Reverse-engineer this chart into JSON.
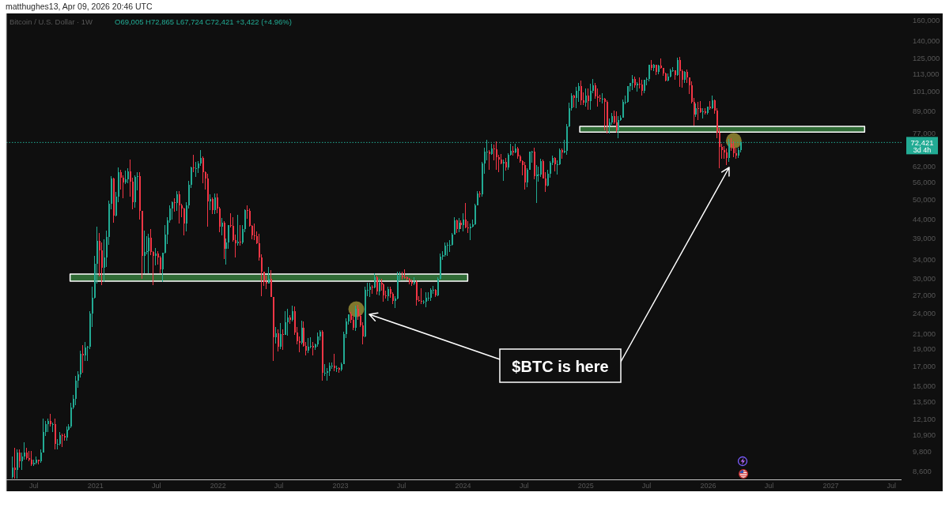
{
  "chart_data": {
    "type": "candlestick",
    "title": "Bitcoin / U.S. Dollar · 1W",
    "subtitle": "O69,005 H72,865 L67,724 C72,421 +3,422 (+4.96%)",
    "annotations": [
      "matthughes13, Apr 09, 2026 20:46 UTC",
      "3d 4h",
      "$BTC is here"
    ],
    "x": [
      "2020-04-27",
      "2020-05-04",
      "2020-05-11",
      "2020-05-18",
      "2020-05-25",
      "2020-06-01",
      "2020-06-08",
      "2020-06-15",
      "2020-06-22",
      "2020-06-29",
      "2020-07-06",
      "2020-07-13",
      "2020-07-20",
      "2020-07-27",
      "2020-08-03",
      "2020-08-10",
      "2020-08-17",
      "2020-08-24",
      "2020-08-31",
      "2020-09-07",
      "2020-09-14",
      "2020-09-21",
      "2020-09-28",
      "2020-10-05",
      "2020-10-12",
      "2020-10-19",
      "2020-10-26",
      "2020-11-02",
      "2020-11-09",
      "2020-11-16",
      "2020-11-23",
      "2020-11-30",
      "2020-12-07",
      "2020-12-14",
      "2020-12-21",
      "2020-12-28",
      "2021-01-04",
      "2021-01-11",
      "2021-01-18",
      "2021-01-25",
      "2021-02-01",
      "2021-02-08",
      "2021-02-15",
      "2021-02-22",
      "2021-03-01",
      "2021-03-08",
      "2021-03-15",
      "2021-03-22",
      "2021-03-29",
      "2021-04-05",
      "2021-04-12",
      "2021-04-19",
      "2021-04-26",
      "2021-05-03",
      "2021-05-10",
      "2021-05-17",
      "2021-05-24",
      "2021-05-31",
      "2021-06-07",
      "2021-06-14",
      "2021-06-21",
      "2021-06-28",
      "2021-07-05",
      "2021-07-12",
      "2021-07-19",
      "2021-07-26",
      "2021-08-02",
      "2021-08-09",
      "2021-08-16",
      "2021-08-23",
      "2021-08-30",
      "2021-09-06",
      "2021-09-13",
      "2021-09-20",
      "2021-09-27",
      "2021-10-04",
      "2021-10-11",
      "2021-10-18",
      "2021-10-25",
      "2021-11-01",
      "2021-11-08",
      "2021-11-15",
      "2021-11-22",
      "2021-11-29",
      "2021-12-06",
      "2021-12-13",
      "2021-12-20",
      "2021-12-27",
      "2022-01-03",
      "2022-01-10",
      "2022-01-17",
      "2022-01-24",
      "2022-01-31",
      "2022-02-07",
      "2022-02-14",
      "2022-02-21",
      "2022-02-28",
      "2022-03-07",
      "2022-03-14",
      "2022-03-21",
      "2022-03-28",
      "2022-04-04",
      "2022-04-11",
      "2022-04-18",
      "2022-04-25",
      "2022-05-02",
      "2022-05-09",
      "2022-05-16",
      "2022-05-23",
      "2022-05-30",
      "2022-06-06",
      "2022-06-13",
      "2022-06-20",
      "2022-06-27",
      "2022-07-04",
      "2022-07-11",
      "2022-07-18",
      "2022-07-25",
      "2022-08-01",
      "2022-08-08",
      "2022-08-15",
      "2022-08-22",
      "2022-08-29",
      "2022-09-05",
      "2022-09-12",
      "2022-09-19",
      "2022-09-26",
      "2022-10-03",
      "2022-10-10",
      "2022-10-17",
      "2022-10-24",
      "2022-10-31",
      "2022-11-07",
      "2022-11-14",
      "2022-11-21",
      "2022-11-28",
      "2022-12-05",
      "2022-12-12",
      "2022-12-19",
      "2022-12-26",
      "2023-01-02",
      "2023-01-09",
      "2023-01-16",
      "2023-01-23",
      "2023-01-30",
      "2023-02-06",
      "2023-02-13",
      "2023-02-20",
      "2023-02-27",
      "2023-03-06",
      "2023-03-13",
      "2023-03-20",
      "2023-03-27",
      "2023-04-03",
      "2023-04-10",
      "2023-04-17",
      "2023-04-24",
      "2023-05-01",
      "2023-05-08",
      "2023-05-15",
      "2023-05-22",
      "2023-05-29",
      "2023-06-05",
      "2023-06-12",
      "2023-06-19",
      "2023-06-26",
      "2023-07-03",
      "2023-07-10",
      "2023-07-17",
      "2023-07-24",
      "2023-07-31",
      "2023-08-07",
      "2023-08-14",
      "2023-08-21",
      "2023-08-28",
      "2023-09-04",
      "2023-09-11",
      "2023-09-18",
      "2023-09-25",
      "2023-10-02",
      "2023-10-09",
      "2023-10-16",
      "2023-10-23",
      "2023-10-30",
      "2023-11-06",
      "2023-11-13",
      "2023-11-20",
      "2023-11-27",
      "2023-12-04",
      "2023-12-11",
      "2023-12-18",
      "2023-12-25",
      "2024-01-01",
      "2024-01-08",
      "2024-01-15",
      "2024-01-22",
      "2024-01-29",
      "2024-02-05",
      "2024-02-12",
      "2024-02-19",
      "2024-02-26",
      "2024-03-04",
      "2024-03-11",
      "2024-03-18",
      "2024-03-25",
      "2024-04-01",
      "2024-04-08",
      "2024-04-15",
      "2024-04-22",
      "2024-04-29",
      "2024-05-06",
      "2024-05-13",
      "2024-05-20",
      "2024-05-27",
      "2024-06-03",
      "2024-06-10",
      "2024-06-17",
      "2024-06-24",
      "2024-07-01",
      "2024-07-08",
      "2024-07-15",
      "2024-07-22",
      "2024-07-29",
      "2024-08-05",
      "2024-08-12",
      "2024-08-19",
      "2024-08-26",
      "2024-09-02",
      "2024-09-09",
      "2024-09-16",
      "2024-09-23",
      "2024-09-30",
      "2024-10-07",
      "2024-10-14",
      "2024-10-21",
      "2024-10-28",
      "2024-11-04",
      "2024-11-11",
      "2024-11-18",
      "2024-11-25",
      "2024-12-02",
      "2024-12-09",
      "2024-12-16",
      "2024-12-23",
      "2024-12-30",
      "2025-01-06",
      "2025-01-13",
      "2025-01-20",
      "2025-01-27",
      "2025-02-03",
      "2025-02-10",
      "2025-02-17",
      "2025-02-24",
      "2025-03-03",
      "2025-03-10",
      "2025-03-17",
      "2025-03-24",
      "2025-03-31",
      "2025-04-07",
      "2025-04-14",
      "2025-04-21",
      "2025-04-28",
      "2025-05-05",
      "2025-05-12",
      "2025-05-19",
      "2025-05-26",
      "2025-06-02",
      "2025-06-09",
      "2025-06-16",
      "2025-06-23",
      "2025-06-30",
      "2025-07-07",
      "2025-07-14",
      "2025-07-21",
      "2025-07-28",
      "2025-08-04",
      "2025-08-11",
      "2025-08-18",
      "2025-08-25",
      "2025-09-01",
      "2025-09-08",
      "2025-09-15",
      "2025-09-22",
      "2025-09-29",
      "2025-10-06",
      "2025-10-13",
      "2025-10-20",
      "2025-10-27",
      "2025-11-03",
      "2025-11-10",
      "2025-11-17",
      "2025-11-24",
      "2025-12-01",
      "2025-12-08",
      "2025-12-15",
      "2025-12-22",
      "2025-12-29",
      "2026-01-05",
      "2026-01-12",
      "2026-01-19",
      "2026-01-26",
      "2026-02-02",
      "2026-02-09",
      "2026-02-16",
      "2026-02-23",
      "2026-03-02",
      "2026-03-09",
      "2026-03-16",
      "2026-03-23",
      "2026-03-30",
      "2026-04-06"
    ],
    "ohlc": [
      [
        8300,
        9500,
        8200,
        8800
      ],
      [
        8800,
        10000,
        8200,
        8700
      ],
      [
        8700,
        9900,
        8200,
        9700
      ],
      [
        9700,
        9900,
        8800,
        9200
      ],
      [
        9200,
        9700,
        8700,
        9500
      ],
      [
        9500,
        10400,
        9300,
        9700
      ],
      [
        9700,
        10000,
        9300,
        9400
      ],
      [
        9400,
        9800,
        9200,
        9300
      ],
      [
        9300,
        9800,
        8900,
        9000
      ],
      [
        9000,
        9300,
        8900,
        9100
      ],
      [
        9100,
        9500,
        9000,
        9300
      ],
      [
        9300,
        9300,
        9000,
        9200
      ],
      [
        9200,
        9900,
        9100,
        9700
      ],
      [
        9700,
        12100,
        9700,
        11100
      ],
      [
        11100,
        11900,
        10800,
        11700
      ],
      [
        11700,
        12100,
        11100,
        11900
      ],
      [
        11900,
        12500,
        11500,
        11700
      ],
      [
        11700,
        11800,
        11100,
        11700
      ],
      [
        11700,
        12100,
        9900,
        10300
      ],
      [
        10300,
        10600,
        9900,
        10300
      ],
      [
        10300,
        11100,
        10200,
        10900
      ],
      [
        10900,
        11000,
        10100,
        10800
      ],
      [
        10800,
        11000,
        10500,
        10700
      ],
      [
        10700,
        11500,
        10500,
        11300
      ],
      [
        11300,
        11700,
        11200,
        11500
      ],
      [
        11500,
        13400,
        11400,
        13000
      ],
      [
        13000,
        14100,
        12900,
        13800
      ],
      [
        13800,
        16000,
        13200,
        15500
      ],
      [
        15500,
        16500,
        14800,
        16100
      ],
      [
        16100,
        18800,
        15800,
        18400
      ],
      [
        18400,
        19500,
        16300,
        18200
      ],
      [
        18200,
        19900,
        17600,
        19200
      ],
      [
        19200,
        19400,
        17600,
        19300
      ],
      [
        19300,
        24300,
        19000,
        23900
      ],
      [
        23900,
        28400,
        21900,
        26500
      ],
      [
        26500,
        34800,
        26400,
        33000
      ],
      [
        33000,
        42000,
        29000,
        38200
      ],
      [
        38200,
        40200,
        30400,
        36000
      ],
      [
        36000,
        37900,
        28800,
        32100
      ],
      [
        32100,
        38600,
        29300,
        34300
      ],
      [
        34300,
        40900,
        32300,
        39300
      ],
      [
        39300,
        49700,
        37400,
        48600
      ],
      [
        48600,
        58300,
        47000,
        57400
      ],
      [
        57400,
        57500,
        43000,
        45200
      ],
      [
        45200,
        52600,
        44900,
        51000
      ],
      [
        51000,
        61700,
        49200,
        59800
      ],
      [
        59800,
        60700,
        53500,
        57600
      ],
      [
        57600,
        58400,
        50400,
        55800
      ],
      [
        55800,
        60200,
        55300,
        57100
      ],
      [
        57100,
        61300,
        55500,
        60100
      ],
      [
        60100,
        64800,
        51000,
        56200
      ],
      [
        56200,
        57500,
        47000,
        49100
      ],
      [
        49100,
        58500,
        47400,
        58000
      ],
      [
        58000,
        59600,
        53000,
        58300
      ],
      [
        58300,
        59600,
        43900,
        46500
      ],
      [
        46500,
        46600,
        30000,
        34700
      ],
      [
        34700,
        40900,
        31100,
        35700
      ],
      [
        35700,
        39500,
        35100,
        35800
      ],
      [
        35800,
        40000,
        31100,
        39100
      ],
      [
        39100,
        41300,
        34900,
        35600
      ],
      [
        35600,
        35800,
        28800,
        34700
      ],
      [
        34700,
        36600,
        32700,
        35300
      ],
      [
        35300,
        35900,
        32800,
        34300
      ],
      [
        34300,
        34700,
        31100,
        31800
      ],
      [
        31800,
        35400,
        29300,
        35400
      ],
      [
        35400,
        42300,
        35200,
        39900
      ],
      [
        39900,
        44700,
        37600,
        43800
      ],
      [
        43800,
        48100,
        43000,
        47100
      ],
      [
        47100,
        49400,
        43900,
        49300
      ],
      [
        49300,
        50500,
        46300,
        48900
      ],
      [
        48900,
        52800,
        46500,
        51800
      ],
      [
        51800,
        52900,
        42900,
        48300
      ],
      [
        48300,
        48800,
        44700,
        47300
      ],
      [
        47300,
        47400,
        39600,
        42800
      ],
      [
        42800,
        49300,
        40800,
        48200
      ],
      [
        48200,
        56600,
        47100,
        55000
      ],
      [
        55000,
        62000,
        53900,
        61500
      ],
      [
        61500,
        67000,
        59600,
        61300
      ],
      [
        61300,
        63700,
        57800,
        61300
      ],
      [
        61300,
        64300,
        59300,
        63300
      ],
      [
        63300,
        69000,
        62300,
        65500
      ],
      [
        65500,
        66300,
        55600,
        59700
      ],
      [
        59700,
        59900,
        53300,
        57300
      ],
      [
        57300,
        59100,
        42000,
        49400
      ],
      [
        49400,
        51900,
        46800,
        50100
      ],
      [
        50100,
        50700,
        45600,
        46700
      ],
      [
        46700,
        52000,
        45500,
        50800
      ],
      [
        50800,
        52100,
        45700,
        47300
      ],
      [
        47300,
        47600,
        40500,
        41900
      ],
      [
        41900,
        44400,
        39600,
        43100
      ],
      [
        43100,
        43500,
        34000,
        36300
      ],
      [
        36300,
        38900,
        32900,
        37900
      ],
      [
        37900,
        42500,
        36300,
        42400
      ],
      [
        42400,
        45800,
        41700,
        42200
      ],
      [
        42200,
        44700,
        38000,
        38400
      ],
      [
        38400,
        39800,
        34300,
        37700
      ],
      [
        37700,
        45400,
        37200,
        38000
      ],
      [
        38000,
        42500,
        37200,
        37800
      ],
      [
        37800,
        42400,
        37600,
        41300
      ],
      [
        41300,
        46900,
        40500,
        46800
      ],
      [
        46800,
        48200,
        44200,
        46400
      ],
      [
        46400,
        47200,
        41900,
        42200
      ],
      [
        42200,
        42400,
        38600,
        39700
      ],
      [
        39700,
        42900,
        38500,
        39500
      ],
      [
        39500,
        40800,
        37600,
        37700
      ],
      [
        37700,
        40000,
        33700,
        34300
      ],
      [
        34300,
        35100,
        26700,
        31300
      ],
      [
        31300,
        31400,
        28600,
        29400
      ],
      [
        29400,
        30500,
        28000,
        29000
      ],
      [
        29000,
        32400,
        29000,
        29900
      ],
      [
        29900,
        31700,
        26600,
        26600
      ],
      [
        26600,
        26600,
        17600,
        20500
      ],
      [
        20500,
        21900,
        19700,
        21000
      ],
      [
        21000,
        21600,
        18700,
        19300
      ],
      [
        19300,
        22500,
        19000,
        20900
      ],
      [
        20900,
        21600,
        18900,
        20800
      ],
      [
        20800,
        24300,
        20800,
        22600
      ],
      [
        22600,
        24600,
        20700,
        23300
      ],
      [
        23300,
        23700,
        22400,
        22900
      ],
      [
        22900,
        25200,
        22700,
        24300
      ],
      [
        24300,
        25100,
        20800,
        21100
      ],
      [
        21100,
        21900,
        19600,
        20000
      ],
      [
        20000,
        20600,
        18600,
        19800
      ],
      [
        19800,
        22800,
        19600,
        21800
      ],
      [
        21800,
        22700,
        19300,
        19400
      ],
      [
        19400,
        19900,
        18200,
        18800
      ],
      [
        18800,
        20400,
        18500,
        19300
      ],
      [
        19300,
        20500,
        19100,
        19400
      ],
      [
        19400,
        19900,
        18200,
        19200
      ],
      [
        19200,
        19700,
        18900,
        19600
      ],
      [
        19600,
        21100,
        19300,
        20600
      ],
      [
        20600,
        21500,
        20100,
        21300
      ],
      [
        21300,
        21500,
        15500,
        16300
      ],
      [
        16300,
        17200,
        16000,
        16300
      ],
      [
        16300,
        16800,
        15500,
        16500
      ],
      [
        16500,
        17400,
        16000,
        17100
      ],
      [
        17100,
        17400,
        16700,
        17100
      ],
      [
        17100,
        18400,
        16500,
        16800
      ],
      [
        16800,
        17100,
        16400,
        16800
      ],
      [
        16800,
        16900,
        16300,
        16600
      ],
      [
        16600,
        17400,
        16500,
        17200
      ],
      [
        17200,
        21300,
        17200,
        20900
      ],
      [
        20900,
        23200,
        20400,
        22700
      ],
      [
        22700,
        23800,
        22300,
        23800
      ],
      [
        23800,
        24200,
        22500,
        22900
      ],
      [
        22900,
        23400,
        21500,
        21800
      ],
      [
        21800,
        25200,
        21400,
        24600
      ],
      [
        24600,
        25300,
        22900,
        23500
      ],
      [
        23500,
        23900,
        21900,
        22200
      ],
      [
        22200,
        22600,
        19600,
        20600
      ],
      [
        20600,
        28400,
        20500,
        27900
      ],
      [
        27900,
        29200,
        26700,
        27900
      ],
      [
        27900,
        29200,
        26600,
        28500
      ],
      [
        28500,
        28800,
        27200,
        28300
      ],
      [
        28300,
        31000,
        28200,
        30300
      ],
      [
        30300,
        30500,
        27100,
        27600
      ],
      [
        27600,
        30000,
        26900,
        29200
      ],
      [
        29200,
        29900,
        27700,
        28900
      ],
      [
        28900,
        29100,
        25800,
        26900
      ],
      [
        26900,
        27700,
        26300,
        26800
      ],
      [
        26800,
        28500,
        25900,
        28000
      ],
      [
        28000,
        28400,
        26500,
        27200
      ],
      [
        27200,
        27400,
        25400,
        25900
      ],
      [
        25900,
        26800,
        24800,
        26300
      ],
      [
        26300,
        31400,
        26200,
        30500
      ],
      [
        30500,
        31300,
        29500,
        30600
      ],
      [
        30600,
        31400,
        29800,
        30300
      ],
      [
        30300,
        31800,
        29900,
        30200
      ],
      [
        30200,
        30400,
        29600,
        29900
      ],
      [
        29900,
        30100,
        28900,
        29300
      ],
      [
        29300,
        29800,
        28600,
        29100
      ],
      [
        29100,
        30200,
        28700,
        29400
      ],
      [
        29400,
        29700,
        25200,
        26100
      ],
      [
        26100,
        26800,
        25800,
        26000
      ],
      [
        26000,
        28100,
        25400,
        25800
      ],
      [
        25800,
        26100,
        25400,
        25800
      ],
      [
        25800,
        27500,
        24900,
        26500
      ],
      [
        26500,
        27500,
        26000,
        26500
      ],
      [
        26500,
        28100,
        26000,
        27900
      ],
      [
        27900,
        28600,
        27200,
        27900
      ],
      [
        27900,
        28000,
        26600,
        26900
      ],
      [
        26900,
        30300,
        26800,
        29900
      ],
      [
        29900,
        35200,
        29800,
        34500
      ],
      [
        34500,
        35900,
        33900,
        35000
      ],
      [
        35000,
        37900,
        34500,
        37100
      ],
      [
        37100,
        37900,
        34800,
        37400
      ],
      [
        37400,
        38400,
        35700,
        37400
      ],
      [
        37400,
        40200,
        37100,
        39900
      ],
      [
        39900,
        44700,
        39900,
        43800
      ],
      [
        43800,
        44000,
        40200,
        41400
      ],
      [
        41400,
        44400,
        40600,
        43000
      ],
      [
        43000,
        43800,
        41300,
        42300
      ],
      [
        42300,
        45900,
        40800,
        43900
      ],
      [
        43900,
        49000,
        41500,
        41700
      ],
      [
        41700,
        43500,
        40300,
        41600
      ],
      [
        41600,
        42800,
        38500,
        42000
      ],
      [
        42000,
        43900,
        41800,
        42600
      ],
      [
        42600,
        48600,
        42300,
        48300
      ],
      [
        48300,
        52800,
        48100,
        52100
      ],
      [
        52100,
        52900,
        50600,
        51700
      ],
      [
        51700,
        64000,
        50900,
        63100
      ],
      [
        63100,
        70000,
        59000,
        68400
      ],
      [
        68400,
        73800,
        64600,
        68400
      ],
      [
        68400,
        68900,
        60800,
        67200
      ],
      [
        67200,
        71800,
        66700,
        69700
      ],
      [
        69700,
        71300,
        64500,
        69400
      ],
      [
        69400,
        72800,
        60700,
        65700
      ],
      [
        65700,
        66900,
        59600,
        64900
      ],
      [
        64900,
        67200,
        62800,
        63200
      ],
      [
        63200,
        64700,
        56500,
        63900
      ],
      [
        63900,
        65500,
        60200,
        61500
      ],
      [
        61500,
        67700,
        60700,
        66900
      ],
      [
        66900,
        71900,
        66500,
        68500
      ],
      [
        68500,
        70600,
        66600,
        67800
      ],
      [
        67800,
        71900,
        67600,
        69600
      ],
      [
        69600,
        70200,
        65100,
        66200
      ],
      [
        66200,
        66900,
        63400,
        64300
      ],
      [
        64300,
        64400,
        58500,
        62700
      ],
      [
        62700,
        63800,
        53500,
        55800
      ],
      [
        55800,
        61400,
        54300,
        60800
      ],
      [
        60800,
        68400,
        60600,
        68200
      ],
      [
        68200,
        68500,
        63500,
        68300
      ],
      [
        68300,
        70000,
        57100,
        58100
      ],
      [
        58100,
        62700,
        49000,
        58700
      ],
      [
        58700,
        61800,
        56100,
        58900
      ],
      [
        58900,
        65000,
        57800,
        64200
      ],
      [
        64200,
        64900,
        57200,
        57300
      ],
      [
        57300,
        59800,
        52600,
        54800
      ],
      [
        54800,
        60700,
        54600,
        59200
      ],
      [
        59200,
        64100,
        57500,
        63600
      ],
      [
        63600,
        66500,
        62700,
        65600
      ],
      [
        65600,
        66000,
        59900,
        62800
      ],
      [
        62800,
        64500,
        58900,
        62900
      ],
      [
        62900,
        69500,
        62400,
        69000
      ],
      [
        69000,
        69500,
        65300,
        68000
      ],
      [
        68000,
        73600,
        67500,
        68700
      ],
      [
        68700,
        81500,
        66800,
        80400
      ],
      [
        80400,
        93500,
        79800,
        90600
      ],
      [
        90600,
        99600,
        89200,
        97900
      ],
      [
        97900,
        98600,
        90800,
        96500
      ],
      [
        96500,
        104000,
        90500,
        101100
      ],
      [
        101100,
        106500,
        94200,
        104400
      ],
      [
        104400,
        108300,
        92200,
        95200
      ],
      [
        95200,
        99900,
        92500,
        93700
      ],
      [
        93700,
        102700,
        91500,
        98300
      ],
      [
        98300,
        102500,
        89300,
        94500
      ],
      [
        94500,
        106000,
        89300,
        101300
      ],
      [
        101300,
        109500,
        99500,
        104800
      ],
      [
        104800,
        106500,
        96200,
        97700
      ],
      [
        97700,
        102500,
        91200,
        96500
      ],
      [
        96500,
        98800,
        94100,
        96100
      ],
      [
        96100,
        99500,
        93400,
        96300
      ],
      [
        96300,
        96500,
        78200,
        94300
      ],
      [
        94300,
        95000,
        76600,
        80700
      ],
      [
        80700,
        84400,
        76600,
        82600
      ],
      [
        82600,
        87500,
        81200,
        86100
      ],
      [
        86100,
        88800,
        81600,
        82400
      ],
      [
        82400,
        88500,
        77100,
        78400
      ],
      [
        78400,
        86100,
        74500,
        83700
      ],
      [
        83700,
        86500,
        83100,
        85200
      ],
      [
        85200,
        95800,
        85100,
        94000
      ],
      [
        94000,
        97900,
        92800,
        94300
      ],
      [
        94300,
        104300,
        93500,
        104100
      ],
      [
        104100,
        106700,
        100700,
        106500
      ],
      [
        106500,
        111900,
        101600,
        109000
      ],
      [
        109000,
        110700,
        103100,
        104600
      ],
      [
        104600,
        106800,
        100400,
        105700
      ],
      [
        105700,
        110500,
        102600,
        105500
      ],
      [
        105500,
        108900,
        98200,
        101000
      ],
      [
        101000,
        108500,
        99600,
        108400
      ],
      [
        108400,
        110500,
        105100,
        109200
      ],
      [
        109200,
        119900,
        107500,
        119800
      ],
      [
        119800,
        123200,
        115700,
        117300
      ],
      [
        117300,
        120200,
        114700,
        119500
      ],
      [
        119500,
        119900,
        112000,
        114100
      ],
      [
        114100,
        119500,
        112700,
        119300
      ],
      [
        119300,
        124500,
        116800,
        117400
      ],
      [
        117400,
        117600,
        111700,
        113500
      ],
      [
        113500,
        113600,
        107300,
        108300
      ],
      [
        108300,
        113400,
        107300,
        111200
      ],
      [
        111200,
        116700,
        110600,
        115300
      ],
      [
        115300,
        117900,
        114400,
        115300
      ],
      [
        115300,
        115400,
        108600,
        112200
      ],
      [
        112200,
        125700,
        111600,
        123500
      ],
      [
        123500,
        126200,
        104000,
        115100
      ],
      [
        115100,
        116000,
        103500,
        108700
      ],
      [
        108700,
        114700,
        106600,
        114500
      ],
      [
        114500,
        116400,
        106300,
        110600
      ],
      [
        110600,
        110600,
        98900,
        104700
      ],
      [
        104700,
        107500,
        93000,
        94400
      ],
      [
        94400,
        96500,
        80600,
        86800
      ],
      [
        86800,
        93100,
        85300,
        90400
      ],
      [
        90400,
        94100,
        83800,
        90300
      ],
      [
        90300,
        94600,
        87600,
        88200
      ],
      [
        88200,
        90400,
        84500,
        88600
      ],
      [
        88600,
        90600,
        86600,
        87800
      ],
      [
        87800,
        91300,
        86900,
        91200
      ],
      [
        91200,
        94800,
        89300,
        90600
      ],
      [
        90600,
        97900,
        90000,
        95000
      ],
      [
        95000,
        95500,
        87200,
        89000
      ],
      [
        89000,
        90500,
        74500,
        77000
      ],
      [
        77000,
        79400,
        61200,
        70400
      ],
      [
        70400,
        72000,
        65100,
        68800
      ],
      [
        68800,
        70900,
        65000,
        67800
      ],
      [
        67800,
        69500,
        62500,
        65500
      ],
      [
        65500,
        74000,
        64000,
        72000
      ],
      [
        72000,
        74500,
        68500,
        70500
      ],
      [
        70500,
        73000,
        66000,
        67500
      ],
      [
        67500,
        69500,
        65200,
        66500
      ],
      [
        66500,
        70000,
        65500,
        69000
      ],
      [
        69005,
        72865,
        67724,
        72421
      ]
    ],
    "colors": [
      "#22ab94",
      "#f23645",
      "#22ab94",
      "#f23645",
      "#22ab94",
      "#22ab94",
      "#f23645",
      "#f23645",
      "#f23645",
      "#22ab94",
      "#22ab94",
      "#f23645",
      "#22ab94",
      "#22ab94",
      "#22ab94",
      "#22ab94",
      "#f23645",
      "#22ab94",
      "#f23645",
      "#22ab94",
      "#22ab94",
      "#f23645",
      "#f23645",
      "#22ab94",
      "#22ab94",
      "#22ab94",
      "#22ab94",
      "#22ab94",
      "#22ab94",
      "#22ab94",
      "#f23645",
      "#22ab94",
      "#22ab94",
      "#22ab94",
      "#22ab94",
      "#22ab94",
      "#22ab94",
      "#f23645",
      "#f23645",
      "#22ab94",
      "#22ab94",
      "#22ab94",
      "#22ab94",
      "#f23645",
      "#22ab94",
      "#22ab94",
      "#f23645",
      "#f23645",
      "#22ab94",
      "#22ab94",
      "#f23645",
      "#f23645",
      "#22ab94",
      "#22ab94",
      "#f23645",
      "#f23645",
      "#22ab94",
      "#22ab94",
      "#22ab94",
      "#f23645",
      "#f23645",
      "#22ab94",
      "#f23645",
      "#f23645",
      "#22ab94",
      "#22ab94",
      "#22ab94",
      "#22ab94",
      "#22ab94",
      "#f23645",
      "#22ab94",
      "#f23645",
      "#f23645",
      "#f23645",
      "#22ab94",
      "#22ab94",
      "#22ab94",
      "#f23645",
      "#22ab94",
      "#22ab94",
      "#22ab94",
      "#f23645",
      "#f23645",
      "#f23645",
      "#22ab94",
      "#f23645",
      "#22ab94",
      "#f23645",
      "#f23645",
      "#22ab94",
      "#f23645",
      "#22ab94",
      "#22ab94",
      "#f23645",
      "#f23645",
      "#f23645",
      "#22ab94",
      "#f23645",
      "#22ab94",
      "#22ab94",
      "#f23645",
      "#f23645",
      "#f23645",
      "#f23645",
      "#f23645",
      "#f23645",
      "#f23645",
      "#f23645",
      "#f23645",
      "#22ab94",
      "#f23645",
      "#f23645",
      "#22ab94",
      "#f23645",
      "#22ab94",
      "#f23645",
      "#22ab94",
      "#22ab94",
      "#f23645",
      "#22ab94",
      "#f23645",
      "#f23645",
      "#f23645",
      "#22ab94",
      "#f23645",
      "#f23645",
      "#22ab94",
      "#22ab94",
      "#f23645",
      "#22ab94",
      "#22ab94",
      "#22ab94",
      "#f23645",
      "#22ab94",
      "#22ab94",
      "#22ab94",
      "#22ab94",
      "#f23645",
      "#22ab94",
      "#f23645",
      "#22ab94",
      "#22ab94",
      "#22ab94",
      "#22ab94",
      "#f23645",
      "#f23645",
      "#22ab94",
      "#f23645",
      "#f23645",
      "#f23645",
      "#22ab94",
      "#22ab94",
      "#22ab94",
      "#f23645",
      "#22ab94",
      "#f23645",
      "#22ab94",
      "#f23645",
      "#f23645",
      "#f23645",
      "#22ab94",
      "#f23645",
      "#f23645",
      "#22ab94",
      "#22ab94",
      "#22ab94",
      "#f23645",
      "#f23645",
      "#f23645",
      "#f23645",
      "#f23645",
      "#22ab94",
      "#f23645",
      "#f23645",
      "#f23645",
      "#22ab94",
      "#22ab94",
      "#22ab94",
      "#22ab94",
      "#22ab94",
      "#f23645",
      "#22ab94",
      "#22ab94",
      "#22ab94",
      "#22ab94",
      "#22ab94",
      "#22ab94",
      "#22ab94",
      "#22ab94",
      "#f23645",
      "#22ab94",
      "#f23645",
      "#22ab94",
      "#f23645",
      "#f23645",
      "#22ab94",
      "#22ab94",
      "#22ab94",
      "#22ab94",
      "#f23645",
      "#22ab94",
      "#22ab94",
      "#22ab94",
      "#f23645",
      "#22ab94",
      "#f23645",
      "#f23645",
      "#f23645",
      "#f23645",
      "#22ab94",
      "#f23645",
      "#22ab94",
      "#22ab94",
      "#f23645",
      "#22ab94",
      "#f23645",
      "#f23645",
      "#f23645",
      "#f23645",
      "#22ab94",
      "#22ab94",
      "#22ab94",
      "#f23645",
      "#22ab94",
      "#22ab94",
      "#22ab94",
      "#f23645",
      "#f23645",
      "#22ab94",
      "#22ab94",
      "#22ab94",
      "#f23645",
      "#22ab94",
      "#22ab94",
      "#f23645",
      "#22ab94",
      "#22ab94",
      "#22ab94",
      "#22ab94",
      "#f23645",
      "#22ab94",
      "#22ab94",
      "#f23645",
      "#f23645",
      "#22ab94",
      "#f23645",
      "#22ab94",
      "#22ab94",
      "#f23645",
      "#f23645",
      "#f23645",
      "#22ab94",
      "#f23645",
      "#f23645",
      "#22ab94",
      "#22ab94",
      "#f23645",
      "#f23645",
      "#22ab94",
      "#22ab94",
      "#22ab94",
      "#22ab94",
      "#22ab94",
      "#22ab94",
      "#22ab94",
      "#f23645",
      "#22ab94",
      "#f23645",
      "#f23645",
      "#22ab94",
      "#22ab94",
      "#22ab94",
      "#f23645",
      "#22ab94",
      "#f23645",
      "#22ab94",
      "#f23645",
      "#f23645",
      "#f23645",
      "#22ab94",
      "#22ab94",
      "#22ab94",
      "#f23645",
      "#22ab94",
      "#f23645",
      "#f23645",
      "#22ab94",
      "#f23645",
      "#f23645",
      "#f23645",
      "#f23645",
      "#22ab94",
      "#f23645",
      "#f23645",
      "#22ab94",
      "#f23645",
      "#22ab94",
      "#f23645",
      "#22ab94",
      "#f23645",
      "#f23645",
      "#f23645",
      "#f23645",
      "#f23645",
      "#f23645",
      "#22ab94",
      "#f23645",
      "#f23645",
      "#f23645",
      "#22ab94",
      "#22ab94"
    ],
    "series": [
      {
        "type": "line",
        "x": [
          "2020-10-17",
          "2024-01-15"
        ],
        "values": [
          null,
          null
        ],
        "lower": [
          29500,
          29500
        ],
        "upper": [
          30900,
          30900
        ],
        "color": "#306b36"
      },
      {
        "type": "line",
        "x": [
          "2024-12-14",
          "2027-04-12"
        ],
        "values": [
          null,
          null
        ],
        "lower": [
          77400,
          77400
        ],
        "upper": [
          80400,
          80400
        ],
        "color": "#306b36"
      },
      {
        "type": "scatter",
        "x": [
          "2023-02-17",
          "2026-03-18"
        ],
        "values": [
          24600,
          73200
        ],
        "color": "#8a8030"
      }
    ],
    "marker": "circle",
    "xlim": [
      "2020-04-10",
      "2027-07-31"
    ],
    "xticks": [
      {
        "value": "2020-07-01",
        "label": "Jul"
      },
      {
        "value": "2021-01-01",
        "label": "2021"
      },
      {
        "value": "2021-07-01",
        "label": "Jul"
      },
      {
        "value": "2022-01-01",
        "label": "2022"
      },
      {
        "value": "2022-07-01",
        "label": "Jul"
      },
      {
        "value": "2023-01-01",
        "label": "2023"
      },
      {
        "value": "2023-07-01",
        "label": "Jul"
      },
      {
        "value": "2024-01-01",
        "label": "2024"
      },
      {
        "value": "2024-07-01",
        "label": "Jul"
      },
      {
        "value": "2025-01-01",
        "label": "2025"
      },
      {
        "value": "2025-07-01",
        "label": "Jul"
      },
      {
        "value": "2026-01-01",
        "label": "2026"
      },
      {
        "value": "2026-07-01",
        "label": "Jul"
      },
      {
        "value": "2027-01-01",
        "label": "2027"
      },
      {
        "value": "2027-07-01",
        "label": "Jul"
      }
    ],
    "ylim": [
      8170,
      167000
    ],
    "log": true,
    "yticks": [
      {
        "value": 8600,
        "label": "8,600"
      },
      {
        "value": 9800,
        "label": "9,800"
      },
      {
        "value": 10900,
        "label": "10,900"
      },
      {
        "value": 12100,
        "label": "12,100"
      },
      {
        "value": 13500,
        "label": "13,500"
      },
      {
        "value": 15000,
        "label": "15,000"
      },
      {
        "value": 17000,
        "label": "17,000"
      },
      {
        "value": 19000,
        "label": "19,000"
      },
      {
        "value": 21000,
        "label": "21,000"
      },
      {
        "value": 24000,
        "label": "24,000"
      },
      {
        "value": 27000,
        "label": "27,000"
      },
      {
        "value": 30000,
        "label": "30,000"
      },
      {
        "value": 34000,
        "label": "34,000"
      },
      {
        "value": 39000,
        "label": "39,000"
      },
      {
        "value": 44000,
        "label": "44,000"
      },
      {
        "value": 50000,
        "label": "50,000"
      },
      {
        "value": 56000,
        "label": "56,000"
      },
      {
        "value": 62000,
        "label": "62,000"
      },
      {
        "value": 77000,
        "label": "77,000"
      },
      {
        "value": 89000,
        "label": "89,000"
      },
      {
        "value": 101000,
        "label": "101,000"
      },
      {
        "value": 113000,
        "label": "113,000"
      },
      {
        "value": 125000,
        "label": "125,000"
      },
      {
        "value": 140000,
        "label": "140,000"
      },
      {
        "value": 160000,
        "label": "160,000"
      }
    ],
    "ref_lines": [
      {
        "axis": "y",
        "value": 72421,
        "label": "72,421",
        "color": "#22ab94",
        "line_style": "dotted"
      }
    ]
  }
}
